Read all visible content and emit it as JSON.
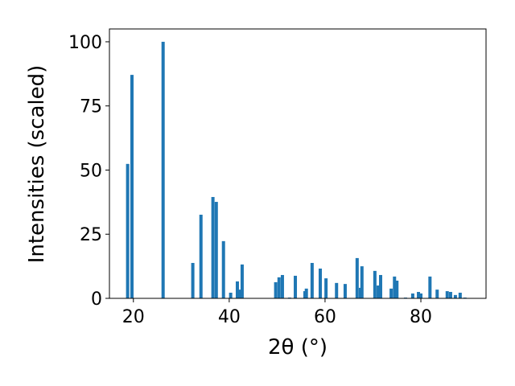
{
  "chart_data": {
    "type": "bar",
    "xlabel": "2θ (°)",
    "ylabel": "Intensities (scaled)",
    "color": "#1f77b4",
    "x": [
      18.8,
      19.7,
      26.2,
      32.4,
      34.1,
      36.6,
      37.3,
      38.8,
      40.3,
      41.7,
      42.2,
      42.7,
      49.7,
      50.4,
      51.1,
      52.6,
      53.8,
      55.8,
      56.1,
      57.3,
      59.0,
      60.2,
      62.4,
      64.2,
      66.7,
      67.4,
      67.7,
      70.4,
      71.1,
      71.6,
      73.8,
      74.5,
      75.0,
      76.8,
      78.3,
      79.5,
      80.0,
      81.9,
      83.4,
      85.5,
      86.2,
      87.2,
      88.2,
      89.2
    ],
    "values": [
      52.4,
      87.1,
      100,
      13.8,
      32.6,
      39.5,
      37.6,
      22.3,
      2.2,
      6.6,
      3.4,
      13.2,
      6.3,
      8.2,
      9.1,
      0.3,
      8.8,
      2.8,
      3.8,
      13.8,
      11.6,
      7.8,
      6.0,
      5.6,
      15.7,
      4.1,
      12.5,
      10.7,
      5.0,
      9.1,
      3.8,
      8.5,
      6.9,
      0.3,
      1.9,
      2.5,
      1.9,
      8.5,
      3.4,
      2.8,
      2.5,
      1.3,
      2.2,
      0.3
    ],
    "xlim": [
      15,
      93.6
    ],
    "ylim": [
      0,
      105
    ],
    "xticks": [
      20,
      40,
      60,
      80
    ],
    "yticks": [
      0,
      25,
      50,
      75,
      100
    ],
    "grid": false
  }
}
